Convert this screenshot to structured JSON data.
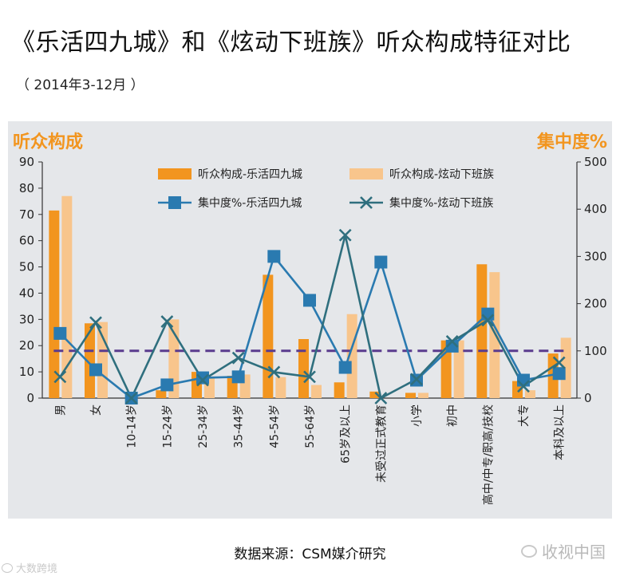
{
  "title": "《乐活四九城》和《炫动下班族》听众构成特征对比",
  "subtitle": "（ 2014年3-12月 ）",
  "source": "数据来源：CSM媒介研究",
  "watermark_left": "大数跨境",
  "watermark_right": "收视中国",
  "chart_data": {
    "type": "bar",
    "left_axis_title": "听众构成",
    "right_axis_title": "集中度%",
    "categories": [
      "男",
      "女",
      "10-14岁",
      "15-24岁",
      "25-34岁",
      "35-44岁",
      "45-54岁",
      "55-64岁",
      "65岁及以上",
      "未受过正式教育",
      "小学",
      "初中",
      "高中/中专/职高/技校",
      "大专",
      "本科及以上"
    ],
    "ylim_left": [
      0,
      90
    ],
    "yticks_left": [
      0,
      10,
      20,
      30,
      40,
      50,
      60,
      70,
      80,
      90
    ],
    "ylim_right": [
      0,
      500
    ],
    "yticks_right": [
      0,
      100,
      200,
      300,
      400,
      500
    ],
    "reference_line": 100,
    "series": [
      {
        "name": "听众构成-乐活四九城",
        "kind": "bar",
        "axis": "left",
        "color": "#f2951f",
        "values": [
          71.5,
          28.5,
          0,
          3,
          10,
          8.5,
          47,
          22.5,
          6,
          2.5,
          2,
          22,
          51,
          6.5,
          17
        ]
      },
      {
        "name": "听众构成-炫动下班族",
        "kind": "bar",
        "axis": "left",
        "color": "#f8c58c",
        "values": [
          77,
          29,
          0,
          30,
          8,
          9,
          8,
          5,
          32,
          0,
          2,
          22,
          48,
          3,
          23
        ]
      },
      {
        "name": "集中度%-乐活四九城",
        "kind": "line",
        "marker": "square",
        "axis": "right",
        "color": "#2a7ab0",
        "values": [
          137,
          60,
          0,
          28,
          43,
          45,
          300,
          207,
          65,
          288,
          38,
          110,
          178,
          38,
          52
        ]
      },
      {
        "name": "集中度%-炫动下班族",
        "kind": "line",
        "marker": "x",
        "axis": "right",
        "color": "#2f6f7e",
        "values": [
          45,
          160,
          0,
          162,
          38,
          85,
          55,
          45,
          345,
          0,
          40,
          120,
          165,
          25,
          75
        ]
      }
    ],
    "reference_line_color": "#5a3b8e",
    "grid": false,
    "legend_position": "top"
  }
}
